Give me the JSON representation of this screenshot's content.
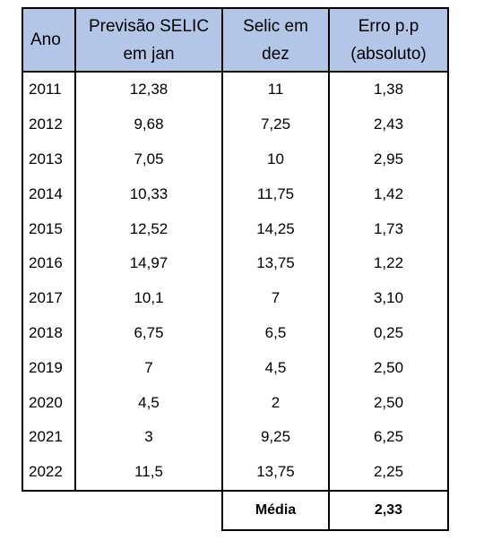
{
  "table": {
    "headers": {
      "ano": "Ano",
      "previsao_line1": "Previsão SELIC",
      "previsao_line2": "em jan",
      "selic_line1": "Selic em",
      "selic_line2": "dez",
      "erro_line1": "Erro p.p",
      "erro_line2": "(absoluto)"
    },
    "rows": [
      {
        "ano": "2011",
        "previsao": "12,38",
        "selic": "11",
        "erro": "1,38"
      },
      {
        "ano": "2012",
        "previsao": "9,68",
        "selic": "7,25",
        "erro": "2,43"
      },
      {
        "ano": "2013",
        "previsao": "7,05",
        "selic": "10",
        "erro": "2,95"
      },
      {
        "ano": "2014",
        "previsao": "10,33",
        "selic": "11,75",
        "erro": "1,42"
      },
      {
        "ano": "2015",
        "previsao": "12,52",
        "selic": "14,25",
        "erro": "1,73"
      },
      {
        "ano": "2016",
        "previsao": "14,97",
        "selic": "13,75",
        "erro": "1,22"
      },
      {
        "ano": "2017",
        "previsao": "10,1",
        "selic": "7",
        "erro": "3,10"
      },
      {
        "ano": "2018",
        "previsao": "6,75",
        "selic": "6,5",
        "erro": "0,25"
      },
      {
        "ano": "2019",
        "previsao": "7",
        "selic": "4,5",
        "erro": "2,50"
      },
      {
        "ano": "2020",
        "previsao": "4,5",
        "selic": "2",
        "erro": "2,50"
      },
      {
        "ano": "2021",
        "previsao": "3",
        "selic": "9,25",
        "erro": "6,25"
      },
      {
        "ano": "2022",
        "previsao": "11,5",
        "selic": "13,75",
        "erro": "2,25"
      }
    ],
    "footer": {
      "label": "Média",
      "value": "2,33"
    }
  },
  "colors": {
    "header_background": "#b4c6e7",
    "border": "#000000"
  }
}
